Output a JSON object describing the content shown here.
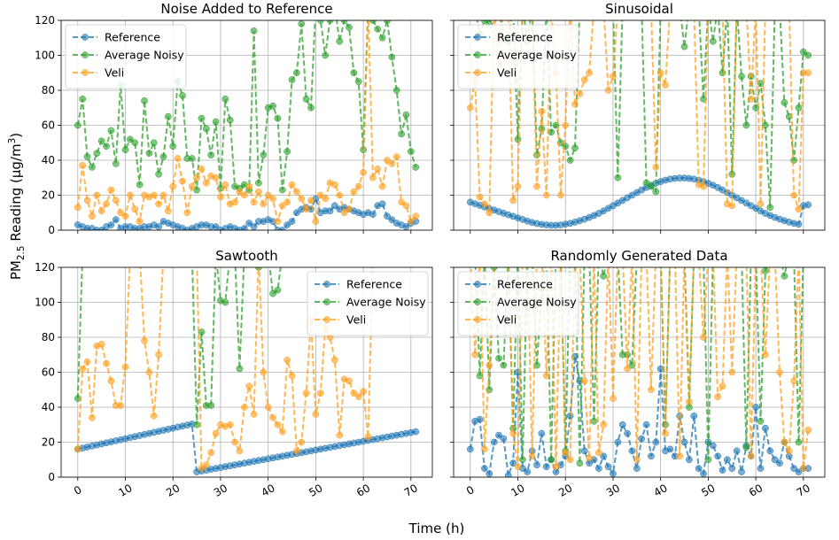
{
  "chart_data": {
    "type": "line",
    "figure": {
      "ylabel_base": "PM",
      "ylabel_sub": "2.5",
      "ylabel_rest": " Reading (µg/m",
      "ylabel_sup": "3",
      "ylabel_end": ")",
      "xlabel": "Time (h)"
    },
    "ylim": [
      0,
      120
    ],
    "xlim": [
      -3.5,
      74.5
    ],
    "yticks": [
      0,
      20,
      40,
      60,
      80,
      100,
      120
    ],
    "xticks": [
      0,
      10,
      20,
      30,
      40,
      50,
      60,
      70
    ],
    "colors": {
      "Reference": "#1f77b4",
      "Average Noisy": "#2ca02c",
      "Veli": "#ff9f1c"
    },
    "panels": [
      {
        "title": "Noise Added to Reference",
        "legend_position": "top-left",
        "series": [
          {
            "name": "Reference",
            "values": [
              3,
              2,
              1,
              1,
              0,
              0,
              2,
              3,
              6,
              1,
              2,
              2,
              1,
              1,
              2,
              2,
              3,
              2,
              5,
              4,
              3,
              2,
              1,
              0,
              1,
              2,
              3,
              3,
              2,
              2,
              0,
              1,
              2,
              1,
              0,
              1,
              4,
              2,
              5,
              5,
              6,
              5,
              0,
              0,
              3,
              5,
              10,
              12,
              13,
              12,
              18,
              10,
              11,
              11,
              14,
              12,
              13,
              12,
              11,
              10,
              9,
              10,
              9,
              14,
              15,
              8,
              6,
              4,
              3,
              2,
              4,
              5
            ]
          },
          {
            "name": "Average Noisy",
            "values": [
              60,
              75,
              42,
              36,
              44,
              51,
              48,
              57,
              38,
              83,
              46,
              52,
              50,
              26,
              74,
              44,
              50,
              32,
              42,
              65,
              48,
              85,
              77,
              41,
              41,
              23,
              64,
              58,
              43,
              62,
              24,
              75,
              63,
              25,
              24,
              26,
              23,
              114,
              27,
              43,
              70,
              71,
              64,
              23,
              45,
              86,
              90,
              118,
              75,
              70,
              128,
              120,
              100,
              120,
              128,
              108,
              120,
              116,
              90,
              85,
              46,
              128,
              120,
              115,
              110,
              120,
              99,
              80,
              55,
              66,
              45,
              36
            ]
          },
          {
            "name": "Veli",
            "values": [
              13,
              37,
              17,
              8,
              20,
              11,
              15,
              23,
              17,
              10,
              8,
              20,
              12,
              5,
              20,
              19,
              20,
              15,
              20,
              11,
              25,
              41,
              28,
              10,
              25,
              30,
              35,
              27,
              31,
              30,
              19,
              26,
              15,
              16,
              22,
              20,
              25,
              16,
              22,
              15,
              20,
              18,
              5,
              14,
              16,
              26,
              22,
              18,
              12,
              17,
              5,
              20,
              18,
              27,
              26,
              20,
              10,
              12,
              22,
              25,
              33,
              128,
              30,
              35,
              25,
              40,
              38,
              42,
              16,
              14,
              5,
              8
            ]
          }
        ]
      },
      {
        "title": "Sinusoidal",
        "legend_position": "top-left",
        "series": [
          {
            "name": "Reference",
            "values": [
              16.0,
              15.1,
              14.2,
              13.3,
              12.4,
              11.5,
              10.6,
              9.7,
              8.8,
              7.9,
              7.0,
              6.1,
              5.2,
              4.4,
              3.8,
              3.3,
              3.0,
              2.8,
              2.8,
              3.0,
              3.4,
              3.9,
              4.6,
              5.4,
              6.3,
              7.3,
              8.4,
              9.6,
              11.0,
              12.5,
              14.0,
              15.5,
              17.0,
              18.5,
              20.0,
              21.5,
              23.0,
              24.4,
              25.7,
              26.8,
              27.8,
              28.6,
              29.2,
              29.6,
              29.8,
              29.8,
              29.6,
              29.2,
              28.6,
              27.8,
              26.8,
              25.7,
              24.4,
              23.0,
              21.5,
              20.0,
              18.5,
              17.0,
              15.5,
              14.0,
              12.5,
              11.0,
              9.6,
              8.4,
              7.3,
              6.3,
              5.4,
              4.6,
              3.9,
              3.4,
              14.0,
              14.5
            ]
          },
          {
            "name": "Average Noisy",
            "values": [
              128,
              128,
              112,
              120,
              118,
              128,
              128,
              109,
              108,
              128,
              52,
              128,
              108,
              128,
              43,
              58,
              128,
              56,
              60,
              50,
              48,
              40,
              47,
              128,
              128,
              128,
              128,
              128,
              128,
              128,
              128,
              30,
              128,
              128,
              128,
              128,
              128,
              27,
              25,
              22,
              128,
              128,
              128,
              128,
              128,
              105,
              128,
              128,
              128,
              75,
              128,
              108,
              128,
              90,
              128,
              32,
              128,
              88,
              60,
              88,
              70,
              84,
              60,
              13,
              128,
              128,
              73,
              65,
              40,
              70,
              102,
              100
            ]
          },
          {
            "name": "Veli",
            "values": [
              70,
              86,
              19,
              15,
              10,
              128,
              95,
              128,
              128,
              17,
              25,
              128,
              128,
              128,
              25,
              68,
              20,
              128,
              90,
              20,
              60,
              128,
              72,
              78,
              86,
              90,
              128,
              128,
              128,
              80,
              88,
              128,
              128,
              128,
              128,
              128,
              128,
              128,
              128,
              36,
              90,
              83,
              128,
              128,
              128,
              128,
              128,
              128,
              26,
              25,
              128,
              128,
              128,
              128,
              15,
              14,
              128,
              128,
              128,
              75,
              128,
              15,
              128,
              128,
              128,
              128,
              128,
              128,
              20,
              12,
              90,
              90
            ]
          }
        ]
      },
      {
        "title": "Sawtooth",
        "legend_position": "top-right",
        "series": [
          {
            "name": "Reference",
            "values": [
              16.0,
              16.6,
              17.2,
              17.8,
              18.4,
              19.0,
              19.6,
              20.2,
              20.8,
              21.4,
              22.0,
              22.6,
              23.2,
              23.8,
              24.4,
              25.0,
              25.6,
              26.2,
              26.8,
              27.4,
              28.0,
              28.6,
              29.2,
              29.8,
              30.4,
              3.0,
              3.5,
              4.0,
              4.5,
              5.0,
              5.5,
              6.0,
              6.5,
              7.0,
              7.5,
              8.0,
              8.5,
              9.0,
              9.5,
              10.0,
              10.5,
              11.0,
              11.5,
              12.0,
              12.5,
              13.0,
              13.5,
              14.0,
              14.5,
              15.0,
              15.5,
              16.0,
              16.5,
              17.0,
              17.5,
              18.0,
              18.5,
              19.0,
              19.5,
              20.0,
              20.5,
              21.0,
              21.5,
              22.0,
              22.5,
              23.0,
              23.5,
              24.0,
              24.5,
              25.0,
              25.5,
              26.0
            ]
          },
          {
            "name": "Average Noisy",
            "values": [
              45,
              128,
              128,
              128,
              128,
              128,
              128,
              128,
              128,
              128,
              128,
              128,
              128,
              128,
              128,
              128,
              128,
              128,
              128,
              128,
              128,
              128,
              128,
              128,
              128,
              30,
              83,
              41,
              41,
              128,
              101,
              100,
              128,
              128,
              62,
              128,
              128,
              128,
              120,
              128,
              128,
              105,
              107,
              128,
              128,
              128,
              128,
              128,
              128,
              128,
              128,
              128,
              128,
              128,
              128,
              128,
              128,
              128,
              128,
              128,
              128,
              128,
              128,
              128,
              128,
              128,
              128,
              128,
              128,
              128,
              128,
              128
            ]
          },
          {
            "name": "Veli",
            "values": [
              16,
              62,
              66,
              34,
              75,
              76,
              65,
              55,
              41,
              41,
              63,
              128,
              128,
              128,
              78,
              60,
              35,
              70,
              128,
              128,
              128,
              128,
              128,
              128,
              128,
              128,
              5,
              7,
              14,
              25,
              30,
              29,
              30,
              20,
              15,
              40,
              52,
              36,
              128,
              60,
              40,
              34,
              30,
              26,
              67,
              58,
              15,
              20,
              48,
              90,
              36,
              48,
              85,
              80,
              67,
              24,
              56,
              55,
              48,
              46,
              49,
              23,
              128,
              128,
              128,
              128,
              128,
              128,
              128,
              128,
              128,
              128
            ]
          }
        ]
      },
      {
        "title": "Randomly Generated Data",
        "legend_position": "top-left",
        "series": [
          {
            "name": "Reference",
            "values": [
              16,
              32,
              33,
              5,
              2,
              20,
              24,
              22,
              1,
              8,
              60,
              5,
              3,
              15,
              7,
              25,
              6,
              10,
              3,
              7,
              12,
              35,
              69,
              55,
              15,
              8,
              10,
              5,
              12,
              6,
              2,
              20,
              30,
              25,
              15,
              5,
              22,
              30,
              12,
              20,
              62,
              15,
              16,
              12,
              35,
              20,
              10,
              35,
              5,
              2,
              20,
              18,
              12,
              4,
              10,
              5,
              15,
              3,
              18,
              12,
              40,
              5,
              28,
              15,
              10,
              8,
              20,
              12,
              5,
              3,
              5,
              5
            ]
          },
          {
            "name": "Average Noisy",
            "values": [
              128,
              128,
              58,
              128,
              50,
              120,
              68,
              64,
              128,
              28,
              128,
              10,
              128,
              128,
              64,
              108,
              128,
              10,
              128,
              128,
              15,
              128,
              128,
              8,
              128,
              128,
              32,
              128,
              115,
              128,
              128,
              128,
              70,
              70,
              64,
              128,
              128,
              128,
              128,
              128,
              128,
              30,
              128,
              128,
              128,
              128,
              40,
              128,
              128,
              128,
              10,
              128,
              128,
              128,
              128,
              128,
              128,
              128,
              17,
              128,
              128,
              32,
              118,
              128,
              128,
              128,
              115,
              128,
              128,
              20,
              128,
              128
            ]
          },
          {
            "name": "Veli",
            "values": [
              128,
              70,
              128,
              16,
              64,
              128,
              128,
              128,
              128,
              25,
              6,
              128,
              128,
              12,
              128,
              128,
              58,
              128,
              6,
              128,
              14,
              10,
              128,
              128,
              55,
              11,
              128,
              14,
              30,
              128,
              45,
              128,
              128,
              62,
              128,
              10,
              128,
              128,
              50,
              128,
              128,
              25,
              128,
              128,
              12,
              128,
              43,
              128,
              128,
              80,
              128,
              128,
              46,
              52,
              128,
              60,
              128,
              128,
              128,
              12,
              128,
              128,
              70,
              128,
              128,
              60,
              20,
              15,
              55,
              128,
              5,
              27
            ]
          }
        ]
      }
    ]
  }
}
